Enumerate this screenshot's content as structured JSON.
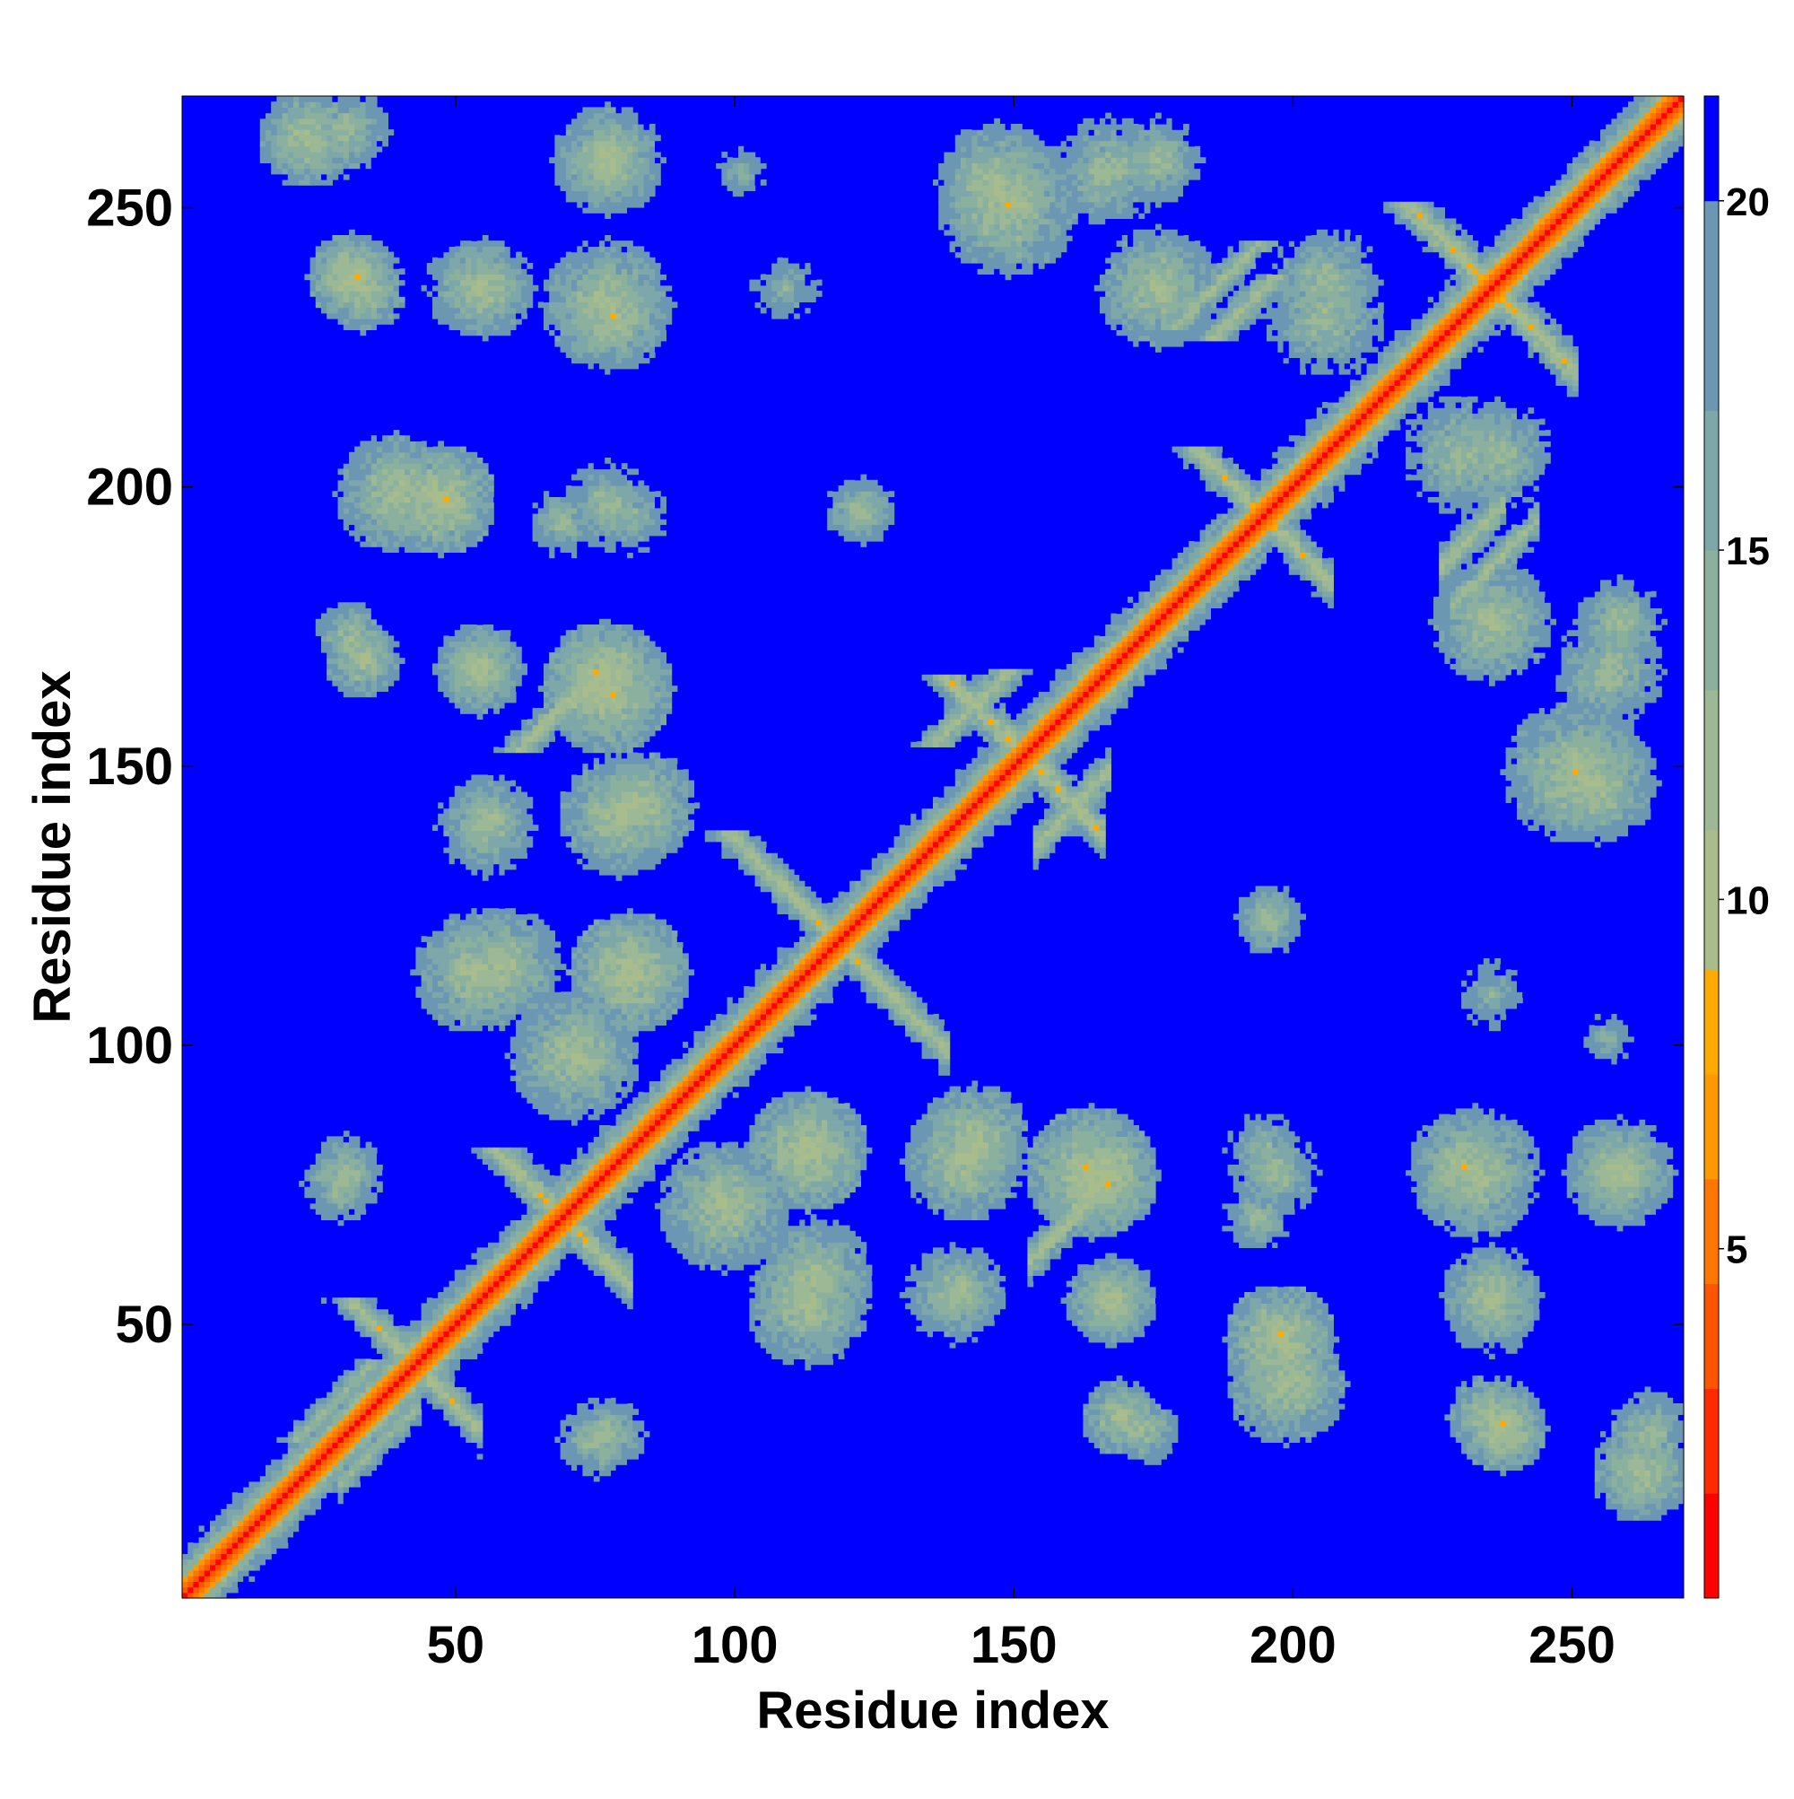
{
  "chart_data": {
    "type": "heatmap",
    "title": "",
    "xlabel": "Residue index",
    "ylabel": "Residue index",
    "n_residues": 270,
    "xlim": [
      1,
      270
    ],
    "ylim": [
      1,
      270
    ],
    "xticks": [
      50,
      100,
      150,
      200,
      250
    ],
    "yticks": [
      50,
      100,
      150,
      200,
      250
    ],
    "colorbar": {
      "range": [
        0,
        21.5
      ],
      "ticks": [
        5,
        10,
        15,
        20
      ],
      "levels": [
        {
          "max": 1.5,
          "color": "#ff0000"
        },
        {
          "max": 3.0,
          "color": "#ff2a00"
        },
        {
          "max": 4.5,
          "color": "#ff5500"
        },
        {
          "max": 6.0,
          "color": "#ff7700"
        },
        {
          "max": 7.5,
          "color": "#ff9900"
        },
        {
          "max": 9.0,
          "color": "#ffaa00"
        },
        {
          "max": 11.0,
          "color": "#a9bd8c"
        },
        {
          "max": 13.0,
          "color": "#9cb895"
        },
        {
          "max": 15.0,
          "color": "#8bb19e"
        },
        {
          "max": 17.0,
          "color": "#7da7a8"
        },
        {
          "max": 20.0,
          "color": "#6b97b3"
        },
        {
          "max": 21.5,
          "color": "#0000ff"
        }
      ]
    },
    "background_distance": 21.5,
    "secondary_structure_contacts": [
      {
        "kind": "anti",
        "i": 30,
        "j": 53,
        "len": 12,
        "d": 8.5
      },
      {
        "kind": "anti",
        "i": 56,
        "j": 80,
        "len": 14,
        "d": 8.0
      },
      {
        "kind": "anti",
        "i": 98,
        "j": 137,
        "len": 24,
        "d": 8.5
      },
      {
        "kind": "anti",
        "i": 137,
        "j": 165,
        "len": 18,
        "d": 8.0
      },
      {
        "kind": "anti",
        "i": 182,
        "j": 206,
        "len": 14,
        "d": 8.0
      },
      {
        "kind": "anti",
        "i": 220,
        "j": 250,
        "len": 20,
        "d": 8.0
      },
      {
        "kind": "par",
        "i": 20,
        "j": 28,
        "len": 15,
        "d": 11.0
      },
      {
        "kind": "par",
        "i": 135,
        "j": 153,
        "len": 14,
        "d": 9.0
      },
      {
        "kind": "par",
        "i": 178,
        "j": 228,
        "len": 16,
        "d": 10.0
      },
      {
        "kind": "par",
        "i": 60,
        "j": 152,
        "len": 16,
        "d": 9.0
      },
      {
        "kind": "par",
        "i": 185,
        "j": 226,
        "len": 12,
        "d": 9.0
      },
      {
        "kind": "par",
        "i": 70,
        "j": 160,
        "len": 10,
        "d": 9.5
      }
    ],
    "contact_blobs": [
      {
        "x": 22,
        "y": 262,
        "r": 9,
        "d": 10
      },
      {
        "x": 30,
        "y": 237,
        "r": 8,
        "d": 9
      },
      {
        "x": 52,
        "y": 235,
        "r": 9,
        "d": 11
      },
      {
        "x": 76,
        "y": 232,
        "r": 12,
        "d": 10
      },
      {
        "x": 76,
        "y": 257,
        "r": 9,
        "d": 11
      },
      {
        "x": 146,
        "y": 254,
        "r": 11,
        "d": 10
      },
      {
        "x": 166,
        "y": 256,
        "r": 10,
        "d": 11
      },
      {
        "x": 38,
        "y": 198,
        "r": 11,
        "d": 10
      },
      {
        "x": 68,
        "y": 193,
        "r": 7,
        "d": 12
      },
      {
        "x": 80,
        "y": 194,
        "r": 7,
        "d": 12
      },
      {
        "x": 121,
        "y": 195,
        "r": 6,
        "d": 11
      },
      {
        "x": 30,
        "y": 172,
        "r": 7,
        "d": 11
      },
      {
        "x": 53,
        "y": 167,
        "r": 8,
        "d": 10
      },
      {
        "x": 75,
        "y": 165,
        "r": 10,
        "d": 9
      },
      {
        "x": 54,
        "y": 138,
        "r": 9,
        "d": 11
      },
      {
        "x": 78,
        "y": 140,
        "r": 11,
        "d": 10
      },
      {
        "x": 52,
        "y": 112,
        "r": 11,
        "d": 10
      },
      {
        "x": 80,
        "y": 112,
        "r": 11,
        "d": 9
      },
      {
        "x": 195,
        "y": 122,
        "r": 6,
        "d": 11
      },
      {
        "x": 28,
        "y": 74,
        "r": 7,
        "d": 11
      },
      {
        "x": 97,
        "y": 70,
        "r": 12,
        "d": 10
      },
      {
        "x": 142,
        "y": 82,
        "r": 10,
        "d": 10
      },
      {
        "x": 163,
        "y": 76,
        "r": 12,
        "d": 9
      },
      {
        "x": 196,
        "y": 76,
        "r": 8,
        "d": 11
      },
      {
        "x": 113,
        "y": 57,
        "r": 11,
        "d": 10
      },
      {
        "x": 140,
        "y": 55,
        "r": 8,
        "d": 11
      },
      {
        "x": 166,
        "y": 53,
        "r": 8,
        "d": 10
      },
      {
        "x": 197,
        "y": 46,
        "r": 10,
        "d": 9
      },
      {
        "x": 76,
        "y": 29,
        "r": 7,
        "d": 11
      },
      {
        "x": 168,
        "y": 32,
        "r": 7,
        "d": 10
      },
      {
        "x": 235,
        "y": 54,
        "r": 9,
        "d": 10
      },
      {
        "x": 235,
        "y": 32,
        "r": 8,
        "d": 10
      },
      {
        "x": 263,
        "y": 29,
        "r": 8,
        "d": 11
      },
      {
        "x": 230,
        "y": 77,
        "r": 10,
        "d": 10
      },
      {
        "x": 258,
        "y": 76,
        "r": 10,
        "d": 10
      },
      {
        "x": 250,
        "y": 148,
        "r": 13,
        "d": 10
      },
      {
        "x": 235,
        "y": 175,
        "r": 11,
        "d": 10
      },
      {
        "x": 258,
        "y": 175,
        "r": 8,
        "d": 11
      },
      {
        "x": 205,
        "y": 236,
        "r": 10,
        "d": 11
      },
      {
        "x": 230,
        "y": 205,
        "r": 11,
        "d": 11
      },
      {
        "x": 108,
        "y": 235,
        "r": 7,
        "d": 13
      },
      {
        "x": 100,
        "y": 256,
        "r": 5,
        "d": 13
      }
    ]
  }
}
